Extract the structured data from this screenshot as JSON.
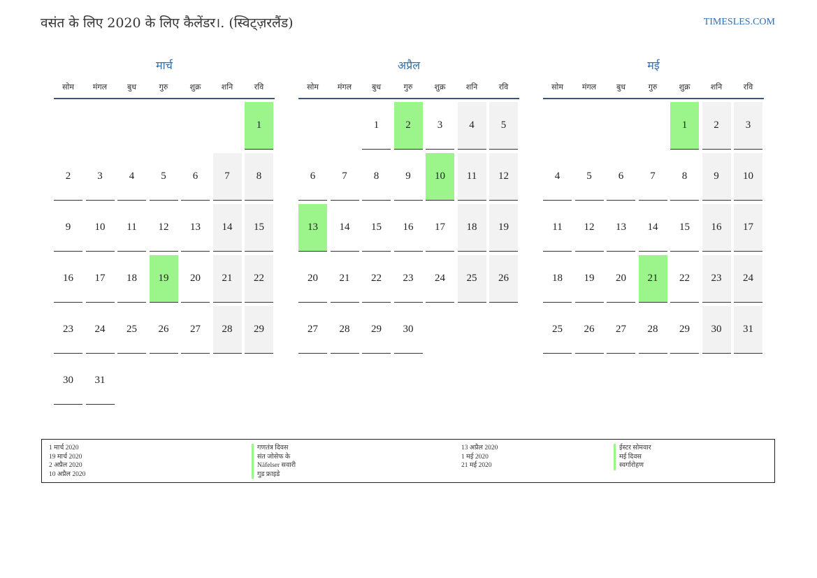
{
  "header": {
    "title": "वसंत के लिए 2020 के लिए कैलेंडर।. (स्विट्ज़रलैंड)",
    "site": "TIMESLES.COM"
  },
  "weekdays": [
    "सोम",
    "मंगल",
    "बुध",
    "गुरु",
    "शुक्र",
    "शनि",
    "रवि"
  ],
  "colors": {
    "holiday": "#9cf58b",
    "weekend": "#f2f2f2",
    "accent": "#2f6fb0"
  },
  "months": [
    {
      "name": "मार्च",
      "weeks": [
        [
          "",
          "",
          "",
          "",
          "",
          "",
          "1"
        ],
        [
          "2",
          "3",
          "4",
          "5",
          "6",
          "7",
          "8"
        ],
        [
          "9",
          "10",
          "11",
          "12",
          "13",
          "14",
          "15"
        ],
        [
          "16",
          "17",
          "18",
          "19",
          "20",
          "21",
          "22"
        ],
        [
          "23",
          "24",
          "25",
          "26",
          "27",
          "28",
          "29"
        ],
        [
          "30",
          "31",
          "",
          "",
          "",
          "",
          ""
        ]
      ],
      "holidays": [
        "1",
        "19"
      ]
    },
    {
      "name": "अप्रैल",
      "weeks": [
        [
          "",
          "",
          "1",
          "2",
          "3",
          "4",
          "5"
        ],
        [
          "6",
          "7",
          "8",
          "9",
          "10",
          "11",
          "12"
        ],
        [
          "13",
          "14",
          "15",
          "16",
          "17",
          "18",
          "19"
        ],
        [
          "20",
          "21",
          "22",
          "23",
          "24",
          "25",
          "26"
        ],
        [
          "27",
          "28",
          "29",
          "30",
          "",
          "",
          ""
        ]
      ],
      "holidays": [
        "2",
        "10",
        "13"
      ]
    },
    {
      "name": "मई",
      "weeks": [
        [
          "",
          "",
          "",
          "",
          "1",
          "2",
          "3"
        ],
        [
          "4",
          "5",
          "6",
          "7",
          "8",
          "9",
          "10"
        ],
        [
          "11",
          "12",
          "13",
          "14",
          "15",
          "16",
          "17"
        ],
        [
          "18",
          "19",
          "20",
          "21",
          "22",
          "23",
          "24"
        ],
        [
          "25",
          "26",
          "27",
          "28",
          "29",
          "30",
          "31"
        ]
      ],
      "holidays": [
        "1",
        "21"
      ]
    }
  ],
  "legend": {
    "left_dates": [
      "1 मार्च 2020",
      "19 मार्च 2020",
      "2 अप्रैल 2020",
      "10 अप्रैल 2020"
    ],
    "left_names": [
      "गणतंत्र दिवस",
      "संत जोसेफ के",
      "Näfelser सवारी",
      "गुड फ्राइडे"
    ],
    "right_dates": [
      "13 अप्रैल 2020",
      "1 मई 2020",
      "21 मई 2020"
    ],
    "right_names": [
      "ईस्टर सोमवार",
      "मई दिवस",
      "स्वर्गारोहण"
    ]
  }
}
